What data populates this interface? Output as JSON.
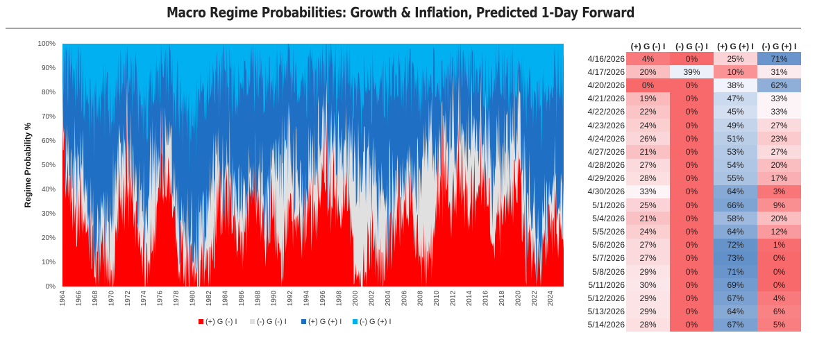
{
  "title": "Macro Regime Probabilities: Growth & Inflation, Predicted 1-Day Forward",
  "chart_data": {
    "type": "area",
    "stacked": true,
    "ylabel": "Regime Probability %",
    "ylim": [
      0,
      100
    ],
    "yticks": [
      "0%",
      "10%",
      "20%",
      "30%",
      "40%",
      "50%",
      "60%",
      "70%",
      "80%",
      "90%",
      "100%"
    ],
    "xticks": [
      "1964",
      "1966",
      "1968",
      "1970",
      "1972",
      "1974",
      "1976",
      "1978",
      "1980",
      "1982",
      "1984",
      "1986",
      "1988",
      "1990",
      "1992",
      "1994",
      "1996",
      "1998",
      "2000",
      "2002",
      "2004",
      "2006",
      "2008",
      "2010",
      "2012",
      "2014",
      "2016",
      "2018",
      "2020",
      "2022",
      "2024"
    ],
    "xlim": [
      1964,
      2025.6
    ],
    "legend_position": "bottom",
    "series": [
      {
        "name": "(+) G (-) I",
        "color": "#ff0000"
      },
      {
        "name": "(-) G (-) I",
        "color": "#e0e0e0"
      },
      {
        "name": "(+) G (+) I",
        "color": "#1f6fc4"
      },
      {
        "name": "(-) G (+) I",
        "color": "#00b0f0"
      }
    ],
    "approx_series_points": {
      "x": [
        1964,
        1965,
        1966,
        1967,
        1968,
        1969,
        1970,
        1971,
        1972,
        1973,
        1974,
        1975,
        1976,
        1977,
        1978,
        1979,
        1980,
        1981,
        1982,
        1983,
        1984,
        1985,
        1986,
        1987,
        1988,
        1989,
        1990,
        1991,
        1992,
        1993,
        1994,
        1995,
        1996,
        1997,
        1998,
        1999,
        2000,
        2001,
        2002,
        2003,
        2004,
        2005,
        2006,
        2007,
        2008,
        2009,
        2010,
        2011,
        2012,
        2013,
        2014,
        2015,
        2016,
        2017,
        2018,
        2019,
        2020,
        2021,
        2022,
        2023,
        2024,
        2025
      ],
      "pos_g_neg_i": [
        55,
        40,
        25,
        30,
        5,
        15,
        3,
        35,
        40,
        30,
        5,
        15,
        40,
        45,
        20,
        10,
        3,
        8,
        5,
        30,
        35,
        25,
        15,
        35,
        30,
        20,
        30,
        10,
        35,
        25,
        30,
        25,
        45,
        40,
        35,
        45,
        3,
        2,
        20,
        10,
        15,
        30,
        35,
        30,
        15,
        5,
        35,
        40,
        35,
        45,
        35,
        40,
        45,
        25,
        30,
        40,
        45,
        15,
        10,
        8,
        30,
        25
      ],
      "neg_g_neg_i": [
        10,
        10,
        25,
        10,
        10,
        10,
        30,
        20,
        15,
        15,
        20,
        35,
        10,
        15,
        15,
        10,
        15,
        20,
        30,
        20,
        10,
        20,
        20,
        10,
        10,
        15,
        20,
        40,
        25,
        15,
        10,
        25,
        20,
        20,
        20,
        15,
        40,
        50,
        30,
        30,
        15,
        15,
        10,
        15,
        30,
        60,
        15,
        20,
        25,
        20,
        20,
        25,
        20,
        25,
        20,
        20,
        25,
        20,
        15,
        10,
        15,
        15
      ],
      "pos_g_pos_i": [
        25,
        40,
        35,
        40,
        55,
        55,
        40,
        30,
        30,
        40,
        45,
        30,
        35,
        30,
        45,
        50,
        50,
        50,
        45,
        35,
        40,
        40,
        45,
        45,
        45,
        45,
        35,
        35,
        30,
        40,
        45,
        35,
        25,
        30,
        30,
        30,
        35,
        30,
        35,
        45,
        50,
        40,
        40,
        40,
        35,
        20,
        35,
        25,
        25,
        25,
        30,
        20,
        20,
        35,
        35,
        25,
        15,
        45,
        50,
        55,
        40,
        45
      ],
      "neg_g_pos_i": [
        10,
        10,
        15,
        20,
        30,
        20,
        27,
        15,
        15,
        15,
        30,
        20,
        15,
        10,
        20,
        30,
        32,
        22,
        20,
        15,
        15,
        15,
        20,
        10,
        15,
        20,
        15,
        15,
        10,
        20,
        15,
        15,
        10,
        10,
        15,
        10,
        22,
        18,
        15,
        15,
        20,
        15,
        15,
        15,
        20,
        15,
        15,
        15,
        15,
        10,
        15,
        15,
        15,
        15,
        15,
        15,
        15,
        20,
        25,
        27,
        15,
        15
      ]
    }
  },
  "table": {
    "headers": [
      "(+) G (-) I",
      "(-) G (-) I",
      "(+) G (+) I",
      "(-) G (+) I"
    ],
    "rows": [
      {
        "date": "4/16/2026",
        "v": [
          "4%",
          "0%",
          "25%",
          "71%"
        ]
      },
      {
        "date": "4/17/2026",
        "v": [
          "20%",
          "39%",
          "10%",
          "31%"
        ]
      },
      {
        "date": "4/20/2026",
        "v": [
          "0%",
          "0%",
          "38%",
          "62%"
        ]
      },
      {
        "date": "4/21/2026",
        "v": [
          "19%",
          "0%",
          "47%",
          "33%"
        ]
      },
      {
        "date": "4/22/2026",
        "v": [
          "22%",
          "0%",
          "45%",
          "33%"
        ]
      },
      {
        "date": "4/23/2026",
        "v": [
          "24%",
          "0%",
          "49%",
          "27%"
        ]
      },
      {
        "date": "4/24/2026",
        "v": [
          "26%",
          "0%",
          "51%",
          "23%"
        ]
      },
      {
        "date": "4/27/2026",
        "v": [
          "21%",
          "0%",
          "53%",
          "27%"
        ]
      },
      {
        "date": "4/28/2026",
        "v": [
          "27%",
          "0%",
          "54%",
          "20%"
        ]
      },
      {
        "date": "4/29/2026",
        "v": [
          "28%",
          "0%",
          "55%",
          "17%"
        ]
      },
      {
        "date": "4/30/2026",
        "v": [
          "33%",
          "0%",
          "64%",
          "3%"
        ]
      },
      {
        "date": "5/1/2026",
        "v": [
          "25%",
          "0%",
          "66%",
          "9%"
        ]
      },
      {
        "date": "5/4/2026",
        "v": [
          "21%",
          "0%",
          "58%",
          "20%"
        ]
      },
      {
        "date": "5/5/2026",
        "v": [
          "24%",
          "0%",
          "64%",
          "12%"
        ]
      },
      {
        "date": "5/6/2026",
        "v": [
          "27%",
          "0%",
          "72%",
          "1%"
        ]
      },
      {
        "date": "5/7/2026",
        "v": [
          "27%",
          "0%",
          "73%",
          "0%"
        ]
      },
      {
        "date": "5/8/2026",
        "v": [
          "29%",
          "0%",
          "71%",
          "0%"
        ]
      },
      {
        "date": "5/11/2026",
        "v": [
          "30%",
          "0%",
          "69%",
          "0%"
        ]
      },
      {
        "date": "5/12/2026",
        "v": [
          "29%",
          "0%",
          "67%",
          "4%"
        ]
      },
      {
        "date": "5/13/2026",
        "v": [
          "29%",
          "0%",
          "64%",
          "6%"
        ]
      },
      {
        "date": "5/14/2026",
        "v": [
          "28%",
          "0%",
          "67%",
          "5%"
        ]
      }
    ]
  }
}
